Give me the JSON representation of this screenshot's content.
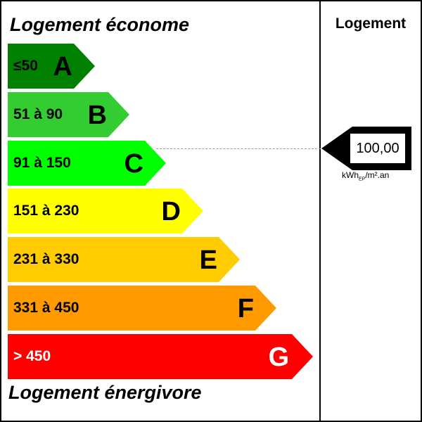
{
  "label": {
    "title_top": "Logement économe",
    "title_bottom": "Logement énergivore",
    "column_header": "Logement",
    "classes": [
      {
        "range": "≤50",
        "letter": "A",
        "color": "#008000",
        "text_color": "#000000"
      },
      {
        "range": "51 à 90",
        "letter": "B",
        "color": "#33cc31",
        "text_color": "#000000"
      },
      {
        "range": "91 à 150",
        "letter": "C",
        "color": "#00ff00",
        "text_color": "#000000"
      },
      {
        "range": "151 à 230",
        "letter": "D",
        "color": "#ffff00",
        "text_color": "#000000"
      },
      {
        "range": "231 à 330",
        "letter": "E",
        "color": "#ffcc00",
        "text_color": "#000000"
      },
      {
        "range": "331 à 450",
        "letter": "F",
        "color": "#ff9a00",
        "text_color": "#000000"
      },
      {
        "range": "> 450",
        "letter": "G",
        "color": "#ff0000",
        "text_color": "#ffffff"
      }
    ],
    "current": {
      "value": "100,00",
      "class_letter": "C",
      "unit_prefix": "kWh",
      "unit_sub": "EP",
      "unit_suffix": "/m².an"
    }
  }
}
